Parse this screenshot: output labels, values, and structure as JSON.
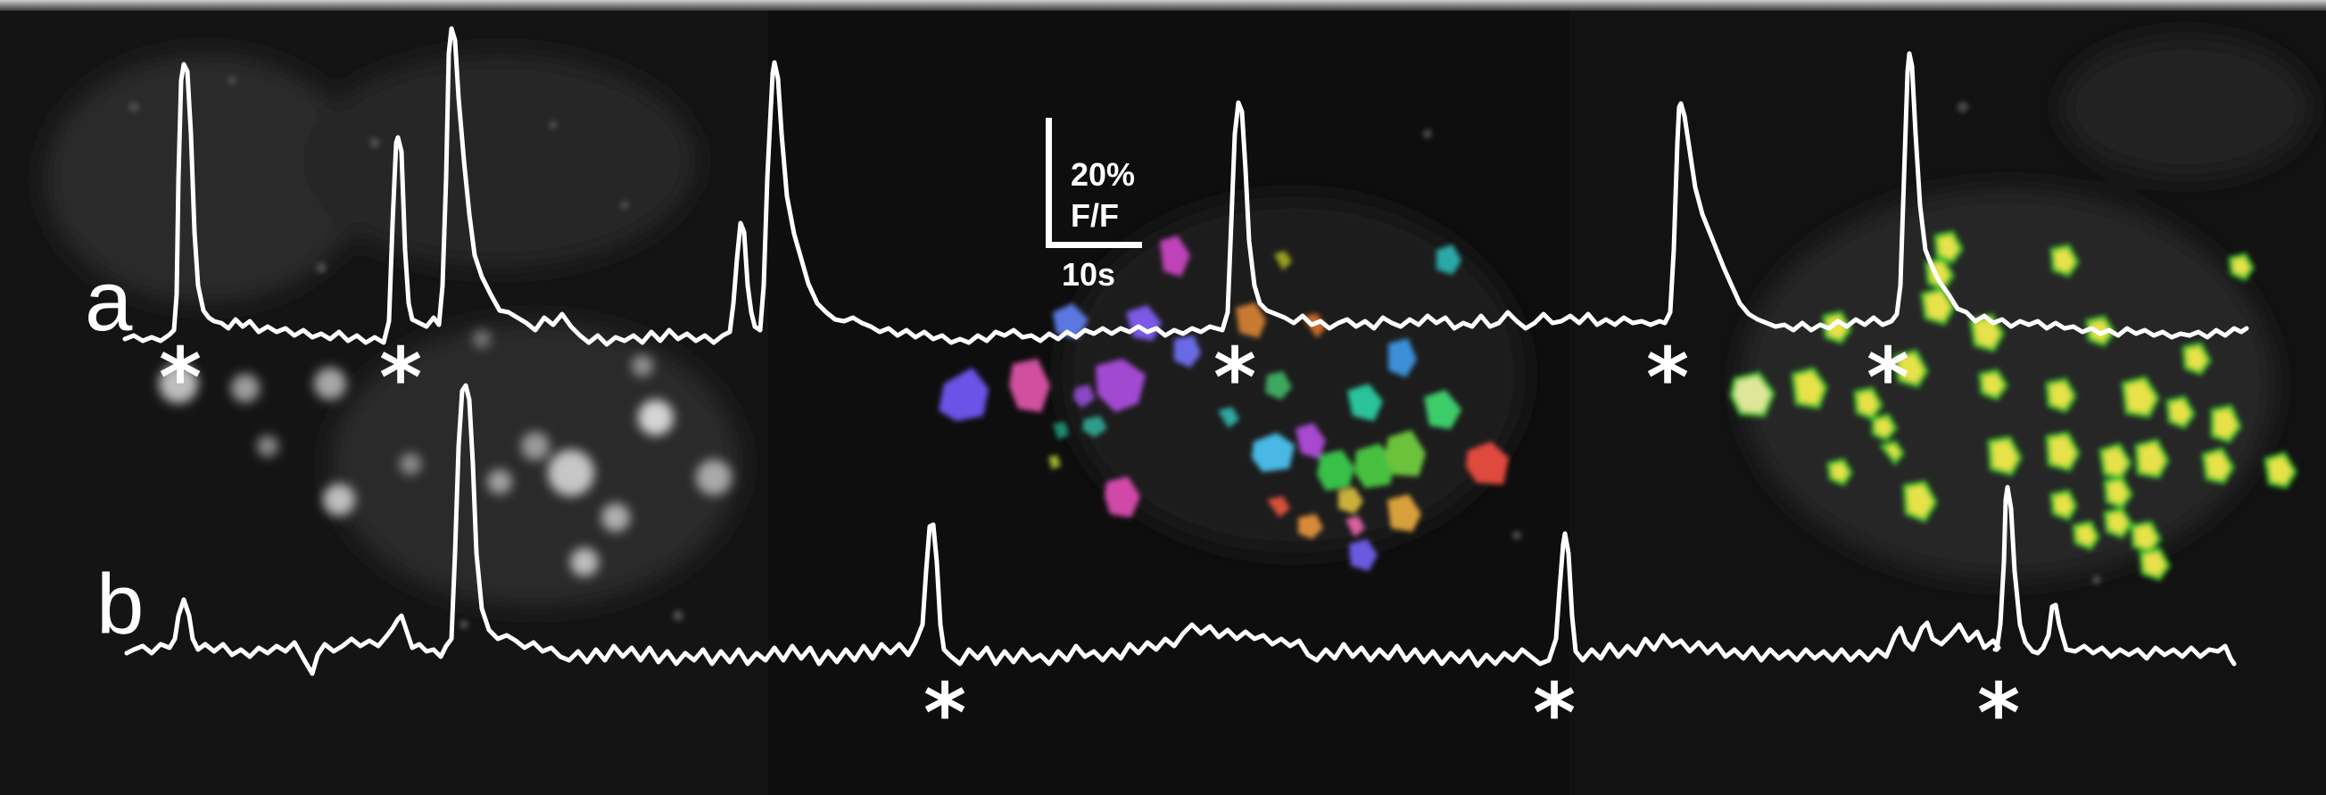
{
  "labels": {
    "trace_a": "a",
    "trace_b": "b"
  },
  "scale_bar": {
    "amplitude": "20%",
    "unit": "F/F",
    "time": "10s"
  },
  "marker_glyph": "*",
  "colors": {
    "background": "#0b0b0b",
    "trace": "#ffffff",
    "cell_fill_green_yellow": "#e7e24a",
    "cell_outline_green": "#3fbf2f"
  }
}
